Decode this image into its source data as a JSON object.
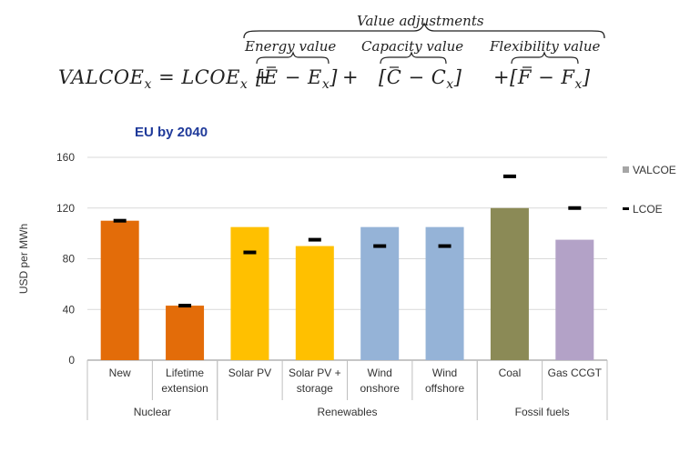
{
  "formula": {
    "lhs": "VALCOE",
    "lhs_sub": "x",
    "equals": "= LCOE",
    "lcoe_sub": "x",
    "plus": "+",
    "group_label": "Value adjustments",
    "terms": [
      {
        "label": "Energy value",
        "expr_bar": "E",
        "expr_rest": " − E",
        "sub": "x",
        "prefix": ""
      },
      {
        "label": "Capacity value",
        "expr_bar": "C",
        "expr_rest": " − C",
        "sub": "x",
        "prefix": ""
      },
      {
        "label": "Flexibility value",
        "expr_bar": "F",
        "expr_rest": " − F",
        "sub": "x",
        "prefix": "+"
      }
    ]
  },
  "chart_data": {
    "type": "bar",
    "title": "EU by 2040",
    "ylabel": "USD per MWh",
    "ylim": [
      0,
      160
    ],
    "yticks": [
      0,
      40,
      80,
      120,
      160
    ],
    "categories": [
      "New",
      "Lifetime\nextension",
      "Solar PV",
      "Solar PV +\nstorage",
      "Wind\nonshore",
      "Wind\noffshore",
      "Coal",
      "Gas CCGT"
    ],
    "groups": [
      {
        "name": "Nuclear",
        "span": [
          0,
          1
        ]
      },
      {
        "name": "Renewables",
        "span": [
          2,
          5
        ]
      },
      {
        "name": "Fossil fuels",
        "span": [
          6,
          7
        ]
      }
    ],
    "series": [
      {
        "name": "VALCOE",
        "values": [
          110,
          43,
          105,
          90,
          105,
          105,
          120,
          95
        ]
      },
      {
        "name": "LCOE",
        "values": [
          110,
          43,
          85,
          95,
          90,
          90,
          145,
          120
        ]
      }
    ],
    "bar_colors": [
      "#e36c09",
      "#e36c09",
      "#ffc000",
      "#ffc000",
      "#95b3d7",
      "#95b3d7",
      "#8b8a56",
      "#b3a2c7"
    ],
    "legend": {
      "placement": "right",
      "valcoe_color": "#a6a6a6",
      "lcoe_color": "#000000"
    }
  }
}
